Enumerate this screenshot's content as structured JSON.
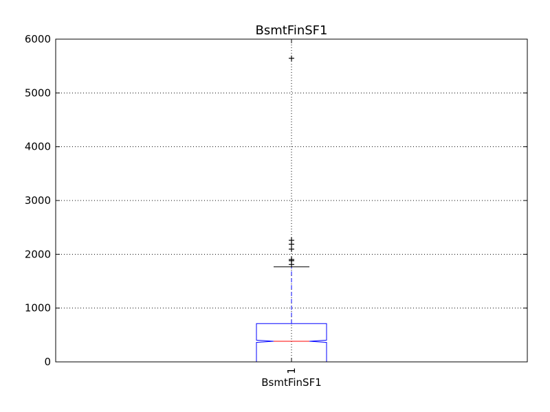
{
  "chart_data": {
    "type": "box",
    "title": "BsmtFinSF1",
    "xlabel": "BsmtFinSF1",
    "ylabel": "",
    "ylim": [
      0,
      6000
    ],
    "yticks": [
      0,
      1000,
      2000,
      3000,
      4000,
      5000,
      6000
    ],
    "categories": [
      "1"
    ],
    "notched": true,
    "grid": true,
    "box": {
      "min": 0,
      "q1": 0,
      "median": 383,
      "q3": 712,
      "whisker_low": 0,
      "whisker_high": 1767,
      "notch_low": 362,
      "notch_high": 404,
      "outliers": [
        1810,
        1880,
        1904,
        2096,
        2188,
        2260,
        5644
      ]
    },
    "colors": {
      "box": "#0000ff",
      "median": "#ff0000",
      "whisker": "#0000ff",
      "cap": "#000000",
      "flier": "#000000"
    }
  }
}
